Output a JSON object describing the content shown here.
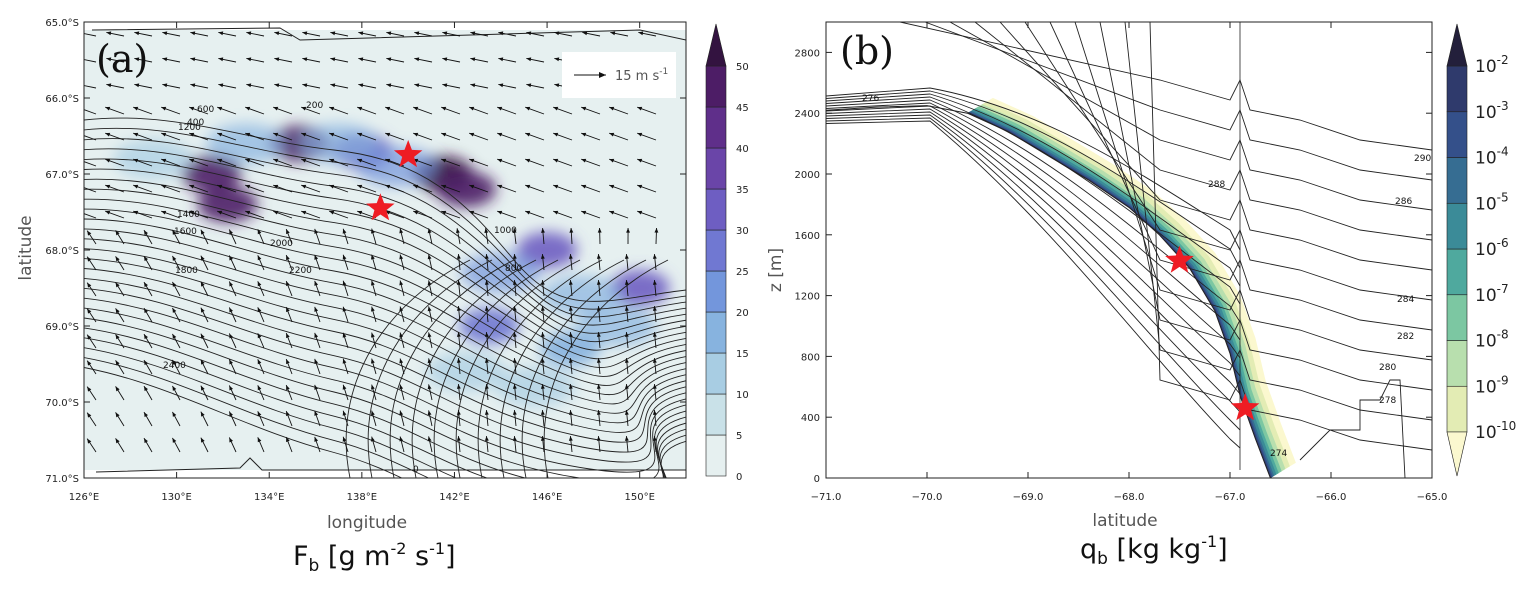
{
  "chart_data": [
    {
      "type": "heatmap",
      "panel_label": "(a)",
      "xlabel": "longitude",
      "ylabel": "latitude",
      "field_label_main": "F",
      "field_label_sub": "b",
      "field_label_unit": "[g m",
      "field_label_exp1": "-2",
      "field_label_mid": " s",
      "field_label_exp2": "-1",
      "field_label_end": "]",
      "x_ticks": [
        "126°E",
        "130°E",
        "134°E",
        "138°E",
        "142°E",
        "146°E",
        "150°E"
      ],
      "y_ticks": [
        "65.0°S",
        "66.0°S",
        "67.0°S",
        "68.0°S",
        "69.0°S",
        "70.0°S",
        "71.0°S"
      ],
      "xlim": [
        126,
        152
      ],
      "ylim": [
        -71,
        -65
      ],
      "colorbar_levels": [
        "0",
        "5",
        "10",
        "15",
        "20",
        "25",
        "30",
        "35",
        "40",
        "45",
        "50"
      ],
      "colorbar_colors": [
        "#e6f0f0",
        "#c9e1e8",
        "#a8cde3",
        "#87b3df",
        "#7396dc",
        "#7078d2",
        "#6e5ec2",
        "#6a45a8",
        "#5f2f8a",
        "#4d1d66",
        "#331340"
      ],
      "vector_reference": {
        "label": "15 m s",
        "exp": "-1"
      },
      "contour_labels": [
        "1200",
        "1400",
        "1600",
        "1800",
        "2000",
        "2200",
        "2400",
        "800",
        "1000",
        "600",
        "400",
        "200",
        "0"
      ],
      "markers": [
        {
          "lon": 140.0,
          "lat": -66.75,
          "symbol": "star",
          "color": "#ee1c24"
        },
        {
          "lon": 138.8,
          "lat": -67.45,
          "symbol": "star",
          "color": "#ee1c24"
        }
      ],
      "blobs": [
        {
          "lon": 131.5,
          "lat": -67.0,
          "level": 9
        },
        {
          "lon": 132.2,
          "lat": -67.4,
          "level": 9
        },
        {
          "lon": 135.3,
          "lat": -66.6,
          "level": 9
        },
        {
          "lon": 138.0,
          "lat": -66.7,
          "level": 6
        },
        {
          "lon": 141.5,
          "lat": -67.0,
          "level": 10
        },
        {
          "lon": 142.5,
          "lat": -67.2,
          "level": 9
        },
        {
          "lon": 146.0,
          "lat": -68.0,
          "level": 6
        },
        {
          "lon": 150.0,
          "lat": -68.5,
          "level": 6
        },
        {
          "lon": 143.5,
          "lat": -69.0,
          "level": 5
        },
        {
          "lon": 147.0,
          "lat": -69.3,
          "level": 3
        }
      ]
    },
    {
      "type": "heatmap",
      "panel_label": "(b)",
      "xlabel": "latitude",
      "ylabel": "z [m]",
      "field_label_main": "q",
      "field_label_sub": "b",
      "field_label_unit": "[kg kg",
      "field_label_exp1": "-1",
      "field_label_end": "]",
      "x_ticks": [
        "−71.0",
        "−70.0",
        "−69.0",
        "−68.0",
        "−67.0",
        "−66.0",
        "−65.0"
      ],
      "y_ticks": [
        "0",
        "400",
        "800",
        "1200",
        "1600",
        "2000",
        "2400",
        "2800"
      ],
      "xlim": [
        -71,
        -65
      ],
      "ylim": [
        0,
        3000
      ],
      "colorbar_levels": [
        {
          "base": "10",
          "exp": "-10"
        },
        {
          "base": "10",
          "exp": "-9"
        },
        {
          "base": "10",
          "exp": "-8"
        },
        {
          "base": "10",
          "exp": "-7"
        },
        {
          "base": "10",
          "exp": "-6"
        },
        {
          "base": "10",
          "exp": "-5"
        },
        {
          "base": "10",
          "exp": "-4"
        },
        {
          "base": "10",
          "exp": "-3"
        },
        {
          "base": "10",
          "exp": "-2"
        }
      ],
      "colorbar_colors": [
        "#fbf8cf",
        "#e3ecb4",
        "#b8dfae",
        "#7cc7a2",
        "#4fa99e",
        "#3b8b98",
        "#366d92",
        "#34508a",
        "#2f3a6c",
        "#231f3b"
      ],
      "contour_labels": [
        "276",
        "278",
        "280",
        "282",
        "284",
        "286",
        "288",
        "290",
        "274"
      ],
      "markers": [
        {
          "lat": -67.5,
          "z": 1430,
          "symbol": "star",
          "color": "#ee1c24"
        },
        {
          "lat": -66.85,
          "z": 460,
          "symbol": "star",
          "color": "#ee1c24"
        }
      ],
      "terrain": [
        {
          "lat": -71.0,
          "z": 2420
        },
        {
          "lat": -70.5,
          "z": 2440
        },
        {
          "lat": -70.0,
          "z": 2450
        },
        {
          "lat": -69.6,
          "z": 2400
        },
        {
          "lat": -69.2,
          "z": 2280
        },
        {
          "lat": -68.8,
          "z": 2120
        },
        {
          "lat": -68.4,
          "z": 1960
        },
        {
          "lat": -68.0,
          "z": 1780
        },
        {
          "lat": -67.7,
          "z": 1600
        },
        {
          "lat": -67.4,
          "z": 1380
        },
        {
          "lat": -67.15,
          "z": 1100
        },
        {
          "lat": -67.0,
          "z": 820
        },
        {
          "lat": -66.9,
          "z": 540
        },
        {
          "lat": -66.75,
          "z": 260
        },
        {
          "lat": -66.6,
          "z": 0
        }
      ]
    }
  ]
}
